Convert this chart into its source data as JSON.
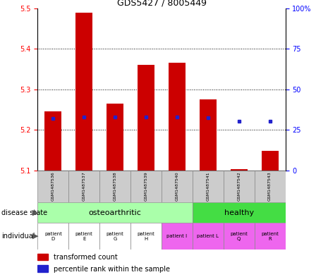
{
  "title": "GDS5427 / 8005449",
  "samples": [
    "GSM1487536",
    "GSM1487537",
    "GSM1487538",
    "GSM1487539",
    "GSM1487540",
    "GSM1487541",
    "GSM1487542",
    "GSM1487543"
  ],
  "bar_bottoms": [
    5.1,
    5.1,
    5.1,
    5.1,
    5.1,
    5.1,
    5.1,
    5.1
  ],
  "bar_tops": [
    5.245,
    5.49,
    5.265,
    5.36,
    5.365,
    5.275,
    5.103,
    5.148
  ],
  "blue_y": [
    5.228,
    5.232,
    5.231,
    5.232,
    5.232,
    5.23,
    5.222,
    5.222
  ],
  "ylim_min": 5.1,
  "ylim_max": 5.5,
  "yticks_left": [
    5.1,
    5.2,
    5.3,
    5.4,
    5.5
  ],
  "yticks_right_labels": [
    "0",
    "25",
    "50",
    "75",
    "100%"
  ],
  "bar_color": "#cc0000",
  "blue_color": "#2222cc",
  "disease_state_labels": [
    "osteoarthritic",
    "healthy"
  ],
  "disease_state_colors": [
    "#aaffaa",
    "#44dd44"
  ],
  "individual_labels": [
    "patient\nD",
    "patient\nE",
    "patient\nG",
    "patient\nH",
    "patient I",
    "patient L",
    "patient\nQ",
    "patient\nR"
  ],
  "individual_colors": [
    "#ffffff",
    "#ffffff",
    "#ffffff",
    "#ffffff",
    "#ee66ee",
    "#ee66ee",
    "#ee66ee",
    "#ee66ee"
  ],
  "legend_red_label": "transformed count",
  "legend_blue_label": "percentile rank within the sample",
  "background_color": "#ffffff",
  "sample_box_color": "#cccccc",
  "left_label_disease": "disease state",
  "left_label_individual": "individual"
}
